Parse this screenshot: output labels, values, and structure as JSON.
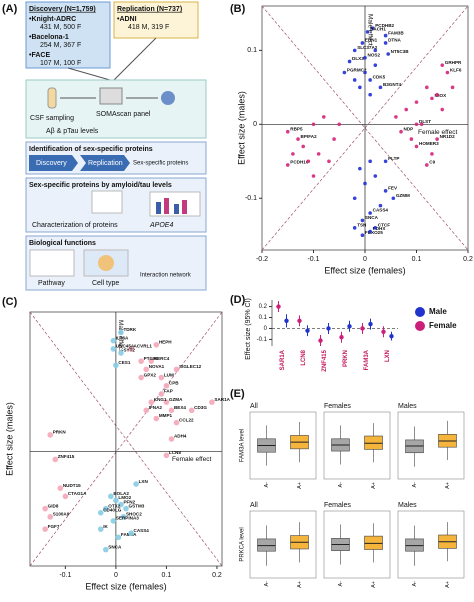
{
  "panel_a": {
    "label": "(A)",
    "discovery": {
      "title": "Discovery (N=1,759)",
      "cohorts": [
        {
          "name": "•Knight-ADRC",
          "detail": "431 M, 500 F"
        },
        {
          "name": "•Bacelona-1",
          "detail": "254 M, 367 F"
        },
        {
          "name": "•FACE",
          "detail": "107 M, 100 F"
        }
      ]
    },
    "replication": {
      "title": "Replication (N=737)",
      "cohorts": [
        {
          "name": "•ADNI",
          "detail": "418 M, 319 F"
        }
      ]
    },
    "steps": [
      "CSF sampling",
      "SOMAscan panel",
      "Aβ & pTau levels"
    ],
    "sections": [
      {
        "title": "Identification of sex-specific proteins",
        "items": [
          "Discovery",
          "Replication",
          "Sex-specific proteins"
        ]
      },
      {
        "title": "Sex-specific proteins by amyloid/tau levels",
        "items": [
          "Characterization of proteins",
          "APOE4"
        ]
      },
      {
        "title": "Biological functions",
        "items": [
          "Pathway",
          "Cell type",
          "Interaction network"
        ]
      }
    ]
  },
  "chart_data": [
    {
      "type": "scatter",
      "panel": "(B)",
      "x_label": "Effect size (females)",
      "y_label": "Effect size (males)",
      "xlim": [
        -0.2,
        0.2
      ],
      "ylim": [
        -0.17,
        0.16
      ],
      "xticks": [
        -0.2,
        -0.1,
        0,
        0.1,
        0.2
      ],
      "yticks": [
        -0.1,
        0,
        0.1
      ],
      "annotations": [
        "Female effect",
        "Male effect"
      ],
      "series": [
        {
          "color": "#1f2fd6",
          "x": [
            0.015,
            0.005,
            0.04,
            0.04,
            -0.005,
            0.045,
            -0.02,
            0.0,
            -0.03,
            -0.04,
            0.01,
            0.03,
            -0.02,
            -0.005,
            0.01,
            0.02,
            -0.005,
            0.01,
            0.04,
            0.055,
            0.04,
            0.02,
            -0.01,
            0.0,
            0.02,
            -0.02,
            0.01,
            0.0,
            -0.02,
            0.02,
            0.03,
            -0.01,
            0.01
          ],
          "values": [
            0.13,
            0.125,
            0.12,
            0.11,
            0.11,
            0.095,
            0.1,
            0.09,
            0.085,
            0.07,
            0.06,
            0.05,
            -0.14,
            -0.15,
            -0.145,
            -0.14,
            -0.13,
            -0.12,
            -0.09,
            -0.1,
            -0.05,
            0.08,
            0.05,
            0.07,
            0.1,
            0.06,
            -0.05,
            -0.08,
            -0.1,
            -0.07,
            -0.11,
            -0.06,
            0.04
          ],
          "labels": [
            "PCDHB2",
            "BACH1",
            "FAM3B",
            "DTNA",
            "ERN1",
            "NT5C3B",
            "SLC37A2",
            "NOS2",
            "DLX3",
            "PGRMC2",
            "CDK5",
            "B3GNT4",
            "TSN",
            "FBXO25",
            "PDHX",
            "CTCF",
            "SNCA",
            "CASS4",
            "FEV",
            "GZMM",
            "PLTP",
            null,
            null,
            null,
            null,
            null,
            null,
            null,
            null,
            null,
            null,
            null,
            null
          ]
        },
        {
          "color": "#d6247a",
          "x": [
            0.15,
            0.16,
            0.13,
            0.1,
            0.14,
            0.1,
            0.12,
            0.07,
            -0.15,
            -0.13,
            -0.15,
            0.08,
            0.1,
            0.12,
            0.09,
            0.11,
            0.14,
            0.17,
            0.06,
            0.13,
            0.15,
            -0.1,
            -0.12,
            -0.08,
            -0.09,
            -0.06,
            -0.11,
            -0.14,
            -0.07,
            -0.05,
            -0.1
          ],
          "values": [
            0.08,
            0.07,
            0.035,
            0.0,
            -0.02,
            -0.03,
            -0.055,
            -0.01,
            -0.01,
            -0.02,
            -0.055,
            0.02,
            0.03,
            0.05,
            -0.02,
            0.0,
            0.04,
            0.05,
            0.01,
            -0.04,
            0.02,
            0.0,
            -0.03,
            0.01,
            -0.04,
            -0.02,
            -0.05,
            -0.04,
            -0.05,
            0.0,
            -0.07
          ],
          "labels": [
            "GRHPR",
            "KLF6",
            "MIOX",
            "DLST",
            "NR1D2",
            "HOMER3",
            "C9",
            "NDP",
            "RBP5",
            "BPIFA2",
            "PCDH10",
            null,
            null,
            null,
            null,
            null,
            null,
            null,
            null,
            null,
            null,
            null,
            null,
            null,
            null,
            null,
            null,
            null,
            null,
            null,
            null
          ]
        }
      ]
    },
    {
      "type": "scatter",
      "panel": "(C)",
      "x_label": "Effect size (females)",
      "y_label": "Effect size (males)",
      "xlim": [
        -0.17,
        0.21
      ],
      "ylim": [
        -0.14,
        0.17
      ],
      "xticks": [
        -0.1,
        0,
        0.1,
        0.2
      ],
      "annotations": [
        "Female effect",
        "Male effect"
      ],
      "series": [
        {
          "color": "#f4a6b8",
          "x": [
            0.19,
            -0.13,
            -0.12,
            -0.11,
            -0.1,
            -0.14,
            -0.13,
            -0.14,
            0.1,
            0.15,
            0.12,
            0.11,
            0.08,
            0.1,
            0.09,
            0.1,
            0.09,
            0.12,
            0.08,
            0.07,
            0.06,
            0.05,
            0.05,
            0.07,
            0.06,
            0.11,
            0.03
          ],
          "values": [
            0.06,
            0.02,
            -0.01,
            -0.045,
            -0.055,
            -0.07,
            -0.08,
            -0.095,
            -0.005,
            0.05,
            0.035,
            0.015,
            0.04,
            0.06,
            0.07,
            0.08,
            0.09,
            0.1,
            0.13,
            0.11,
            0.1,
            0.11,
            0.09,
            0.06,
            0.05,
            0.05,
            0.125
          ],
          "labels": [
            "SAR1A",
            "PRKN",
            "ZNF415",
            "NUDT15",
            "CTAG1A",
            "GID8",
            "S100A9",
            "FGF7",
            "LCN8",
            "CD3G",
            "CCL22",
            "ADH4",
            "MMP1",
            "GZMA",
            "FAP",
            "CPB",
            "LUM",
            "SIGLEC12",
            "HEPH",
            "HERC4",
            "NOVA1",
            "PTGR1",
            "GPX2",
            "KNG1",
            "IFNA2",
            "BEX4",
            "ACVRL1"
          ]
        },
        {
          "color": "#86cce4",
          "x": [
            0.0,
            0.01,
            -0.005,
            -0.005,
            0.01,
            0.04,
            0.0,
            -0.01,
            0.01,
            0.02,
            0.015,
            -0.005,
            -0.02,
            -0.03,
            -0.03,
            0.005,
            0.03,
            -0.02
          ],
          "values": [
            0.105,
            0.12,
            0.125,
            0.135,
            0.145,
            -0.04,
            -0.06,
            -0.055,
            -0.065,
            -0.07,
            -0.08,
            -0.085,
            -0.07,
            -0.075,
            -0.095,
            -0.105,
            -0.1,
            -0.12
          ],
          "labels": [
            "CES1",
            "SYT2",
            "UNC45A",
            "IL36A",
            "TDRK",
            "LXN",
            "LMO2",
            "BOLA2",
            "PFN2",
            "GSTM3",
            "SHOC2",
            "SERPINA3",
            "OTX2",
            "CD40LG",
            "IK",
            "FAM3A",
            "CASS4",
            "SNCA"
          ]
        }
      ]
    },
    {
      "type": "errorbar",
      "panel": "(D)",
      "y_label": "Effect size (95% CI)",
      "categories": [
        "SAR1A",
        "LCN8",
        "ZNF415",
        "PRKN",
        "FAM3A",
        "LXN"
      ],
      "ylim": [
        -0.16,
        0.26
      ],
      "yticks": [
        -0.1,
        0,
        0.1,
        0.2
      ],
      "series": [
        {
          "name": "Male",
          "color": "#2233cc",
          "values": [
            0.07,
            -0.02,
            0.0,
            0.02,
            0.04,
            -0.07
          ],
          "errors": [
            0.06,
            0.05,
            0.05,
            0.05,
            0.05,
            0.04
          ]
        },
        {
          "name": "Female",
          "color": "#cc1f7a",
          "values": [
            0.2,
            0.07,
            -0.11,
            -0.08,
            0.0,
            -0.03
          ],
          "errors": [
            0.05,
            0.05,
            0.05,
            0.05,
            0.05,
            0.05
          ]
        }
      ]
    },
    {
      "type": "box",
      "panel": "(E)",
      "categories": [
        "A-",
        "A+"
      ],
      "colors": [
        "#a6a6a6",
        "#f5b43c"
      ],
      "ylim": [
        -3,
        3
      ],
      "rows": [
        {
          "y_label": "FAM3A level",
          "panels": [
            {
              "title": "All",
              "boxes": [
                [
                  -1.8,
                  -0.6,
                  0.0,
                  0.6,
                  1.8
                ],
                [
                  -1.5,
                  -0.3,
                  0.3,
                  0.9,
                  2.1
                ]
              ]
            },
            {
              "title": "Females",
              "boxes": [
                [
                  -1.7,
                  -0.5,
                  0.05,
                  0.6,
                  1.8
                ],
                [
                  -1.5,
                  -0.35,
                  0.2,
                  0.85,
                  2.0
                ]
              ]
            },
            {
              "title": "Males",
              "boxes": [
                [
                  -1.9,
                  -0.65,
                  -0.05,
                  0.5,
                  1.7
                ],
                [
                  -1.3,
                  -0.15,
                  0.4,
                  1.0,
                  2.2
                ]
              ]
            }
          ]
        },
        {
          "y_label": "PRKCA level",
          "panels": [
            {
              "title": "All",
              "boxes": [
                [
                  -1.9,
                  -0.6,
                  -0.1,
                  0.5,
                  1.7
                ],
                [
                  -1.6,
                  -0.4,
                  0.2,
                  0.8,
                  2.0
                ]
              ]
            },
            {
              "title": "Females",
              "boxes": [
                [
                  -1.8,
                  -0.55,
                  0.0,
                  0.55,
                  1.8
                ],
                [
                  -1.6,
                  -0.45,
                  0.1,
                  0.75,
                  1.9
                ]
              ]
            },
            {
              "title": "Males",
              "boxes": [
                [
                  -1.9,
                  -0.6,
                  -0.1,
                  0.5,
                  1.7
                ],
                [
                  -1.5,
                  -0.35,
                  0.25,
                  0.85,
                  2.0
                ]
              ]
            }
          ]
        }
      ]
    }
  ]
}
